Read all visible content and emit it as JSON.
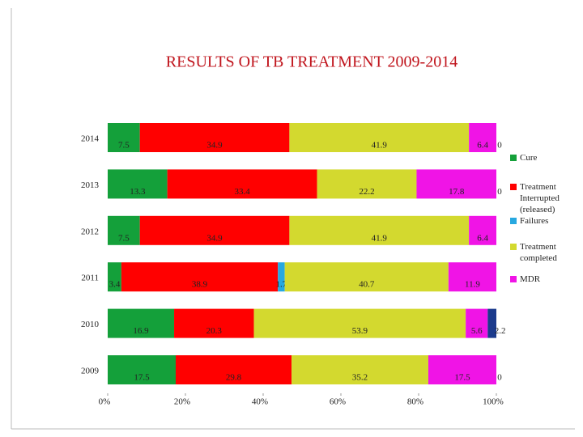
{
  "chart_data": {
    "type": "stacked-bar-100-horizontal",
    "title": "RESULTS OF TB TREATMENT 2009-2014",
    "categories": [
      "2014",
      "2013",
      "2012",
      "2011",
      "2010",
      "2009"
    ],
    "series": [
      {
        "name": "Cure",
        "color": "#14a03a",
        "values": [
          7.5,
          13.3,
          7.5,
          3.4,
          16.9,
          17.5
        ]
      },
      {
        "name": "Treatment Interrupted (released)",
        "color": "#ff0000",
        "values": [
          34.9,
          33.4,
          34.9,
          38.9,
          20.3,
          29.8
        ]
      },
      {
        "name": "Failures",
        "color": "#27a8e0",
        "values": [
          0,
          0,
          0,
          1.7,
          0,
          0
        ]
      },
      {
        "name": "Treatment completed",
        "color": "#d3d92f",
        "values": [
          41.9,
          22.2,
          41.9,
          40.7,
          53.9,
          35.2
        ]
      },
      {
        "name": "MDR",
        "color": "#f014e6",
        "values": [
          6.4,
          17.8,
          6.4,
          11.9,
          5.6,
          17.5
        ]
      },
      {
        "name": null,
        "color": "#1b3a8c",
        "values": [
          0,
          0,
          null,
          null,
          2.2,
          0
        ]
      }
    ],
    "xlim": [
      0,
      100
    ],
    "xticks": [
      {
        "value": 0,
        "label": "0%"
      },
      {
        "value": 20,
        "label": "20%"
      },
      {
        "value": 40,
        "label": "40%"
      },
      {
        "value": 60,
        "label": "60%"
      },
      {
        "value": 80,
        "label": "80%"
      },
      {
        "value": 100,
        "label": "100%"
      }
    ]
  }
}
